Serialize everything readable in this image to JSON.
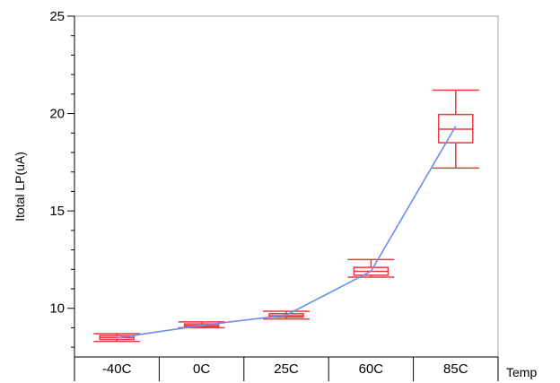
{
  "chart_data": {
    "type": "box",
    "xlabel": "Temp",
    "ylabel": "Itotal LP(uA)",
    "ylim": [
      7.5,
      25
    ],
    "yticks": [
      10,
      15,
      20,
      25
    ],
    "categories": [
      "-40C",
      "0C",
      "25C",
      "60C",
      "85C"
    ],
    "boxes": [
      {
        "category": "-40C",
        "whisker_low": 8.3,
        "q1": 8.4,
        "median": 8.5,
        "q3": 8.6,
        "whisker_high": 8.7
      },
      {
        "category": "0C",
        "whisker_low": 9.0,
        "q1": 9.05,
        "median": 9.12,
        "q3": 9.2,
        "whisker_high": 9.3
      },
      {
        "category": "25C",
        "whisker_low": 9.45,
        "q1": 9.55,
        "median": 9.62,
        "q3": 9.72,
        "whisker_high": 9.85
      },
      {
        "category": "60C",
        "whisker_low": 11.6,
        "q1": 11.7,
        "median": 11.9,
        "q3": 12.1,
        "whisker_high": 12.5
      },
      {
        "category": "85C",
        "whisker_low": 17.2,
        "q1": 18.5,
        "median": 19.2,
        "q3": 19.95,
        "whisker_high": 21.2
      }
    ],
    "mean_line": [
      8.48,
      9.12,
      9.65,
      11.9,
      19.35
    ],
    "grid": false,
    "colors": {
      "box": "#e8393f",
      "line": "#6b8ff0",
      "frame": "#a0a0a0",
      "axis": "#000000"
    }
  }
}
